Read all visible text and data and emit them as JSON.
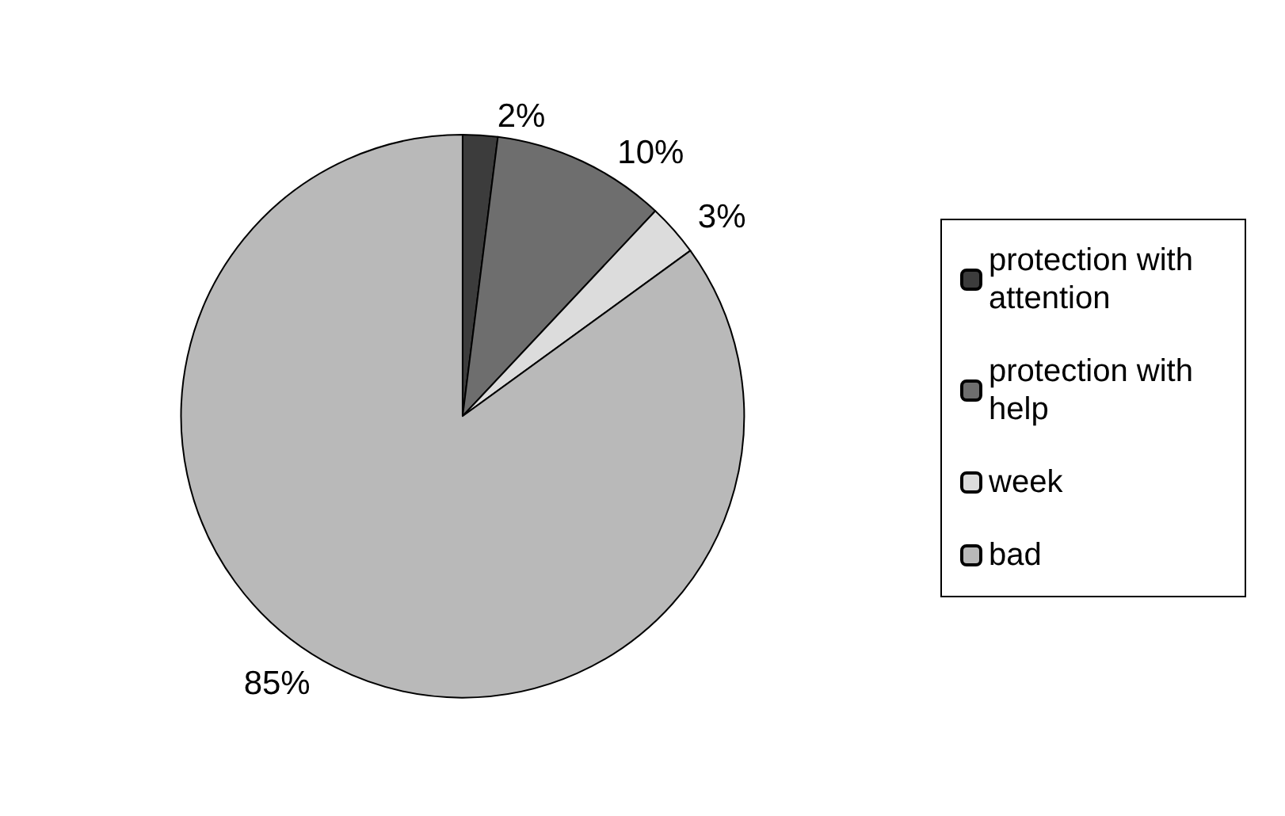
{
  "chart_data": {
    "type": "pie",
    "categories": [
      "protection with attention",
      "protection with help",
      "week",
      "bad"
    ],
    "values": [
      2,
      10,
      3,
      85
    ],
    "value_labels": [
      "2%",
      "10%",
      "3%",
      "85%"
    ],
    "colors": [
      "#3c3c3c",
      "#6e6e6e",
      "#dcdcdc",
      "#b9b9b9"
    ],
    "legend": "right"
  }
}
